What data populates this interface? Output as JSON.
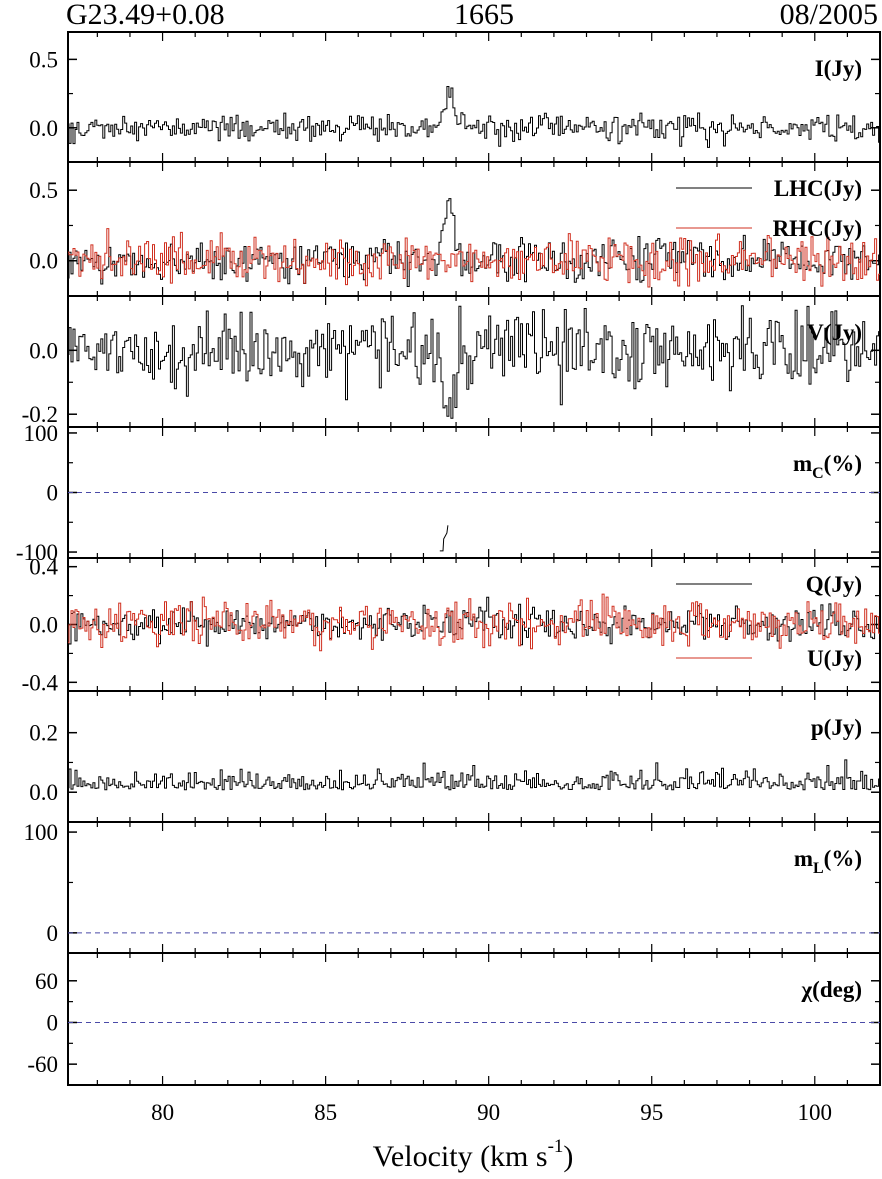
{
  "header": {
    "source": "G23.49+0.08",
    "frequency": "1665",
    "date": "08/2005"
  },
  "chart_data": {
    "type": "line",
    "xlabel": "Velocity (km s",
    "xlabel_sup": "-1",
    "xlabel_close": ")",
    "xlim": [
      77.1,
      102.0
    ],
    "xticks": [
      80,
      85,
      90,
      95,
      100
    ],
    "noise_seed": 2005,
    "panels": [
      {
        "label": "I(Jy)",
        "ylim": [
          -0.25,
          0.7
        ],
        "yticks": [
          "0.5",
          "0.0"
        ],
        "ytick_values": [
          0.5,
          0.0
        ],
        "series": [
          {
            "name": "",
            "color": "#000000",
            "noise": 0.05,
            "features": [
              {
                "center": 88.75,
                "width": 0.15,
                "amplitude": 0.28
              }
            ]
          }
        ]
      },
      {
        "label": "",
        "ylim": [
          -0.25,
          0.7
        ],
        "yticks": [
          "0.5",
          "0.0"
        ],
        "ytick_values": [
          0.5,
          0.0
        ],
        "legend_placement": "top-right",
        "series": [
          {
            "name": "LHC(Jy)",
            "color": "#000000",
            "noise": 0.07,
            "features": [
              {
                "center": 88.75,
                "width": 0.15,
                "amplitude": 0.46
              }
            ]
          },
          {
            "name": "RHC(Jy)",
            "color": "#d03020",
            "noise": 0.08,
            "features": []
          }
        ]
      },
      {
        "label": "V(Jy)",
        "ylim": [
          -0.24,
          0.17
        ],
        "yticks": [
          "0.0",
          "-0.2"
        ],
        "ytick_values": [
          0.0,
          -0.2
        ],
        "series": [
          {
            "name": "",
            "color": "#000000",
            "noise": 0.06,
            "features": [
              {
                "center": 88.75,
                "width": 0.15,
                "amplitude": -0.21
              }
            ]
          }
        ]
      },
      {
        "label": "m",
        "label_sub": "C",
        "label_tail": "(%)",
        "ylim": [
          -110,
          110
        ],
        "yticks": [
          "100",
          "0",
          "-100"
        ],
        "ytick_values": [
          100,
          0,
          -100
        ],
        "zero_line": true,
        "series": [
          {
            "name": "",
            "color": "#000000",
            "points": [
              [
                88.5,
                -98
              ],
              [
                88.6,
                -98
              ],
              [
                88.62,
                -78
              ],
              [
                88.72,
                -68
              ],
              [
                88.75,
                -55
              ]
            ]
          }
        ]
      },
      {
        "label": "",
        "ylim": [
          -0.46,
          0.46
        ],
        "yticks": [
          "0.4",
          "0.0",
          "-0.4"
        ],
        "ytick_values": [
          0.4,
          0.0,
          -0.4
        ],
        "legend_placement": "right",
        "series": [
          {
            "name": "Q(Jy)",
            "color": "#000000",
            "noise": 0.06,
            "features": []
          },
          {
            "name": "U(Jy)",
            "color": "#d03020",
            "noise": 0.08,
            "features": []
          }
        ]
      },
      {
        "label": "p(Jy)",
        "ylim": [
          -0.1,
          0.34
        ],
        "yticks": [
          "0.2",
          "0.0"
        ],
        "ytick_values": [
          0.2,
          0.0
        ],
        "series": [
          {
            "name": "",
            "color": "#000000",
            "noise": 0.04,
            "positive": true,
            "features": []
          }
        ]
      },
      {
        "label": "m",
        "label_sub": "L",
        "label_tail": "(%)",
        "ylim": [
          -20,
          110
        ],
        "yticks": [
          "100",
          "0"
        ],
        "ytick_values": [
          100,
          0
        ],
        "zero_line": true,
        "series": []
      },
      {
        "label": "χ(deg)",
        "ylim": [
          -90,
          100
        ],
        "yticks": [
          "60",
          "0",
          "-60"
        ],
        "ytick_values": [
          60,
          0,
          -60
        ],
        "zero_line": true,
        "series": []
      }
    ]
  }
}
